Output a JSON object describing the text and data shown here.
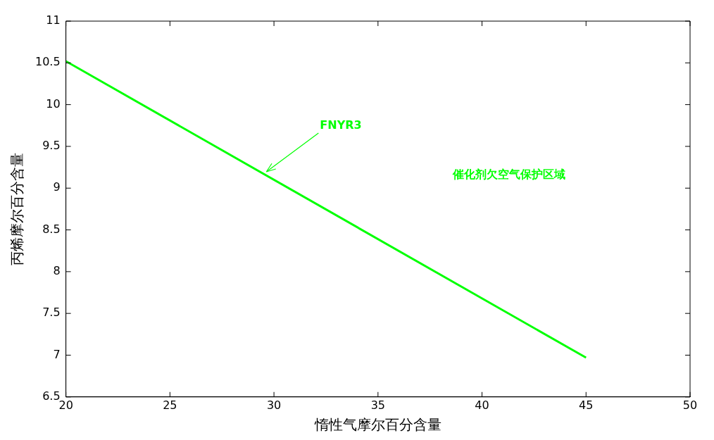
{
  "chart_data": {
    "type": "line",
    "xlabel": "惰性气摩尔百分含量",
    "ylabel": "丙烯摩尔百分含量",
    "x": [
      20,
      45
    ],
    "series": [
      {
        "name": "FNYR3",
        "color": "#00ff00",
        "values": [
          10.52,
          6.97
        ]
      }
    ],
    "xlim": [
      20,
      50
    ],
    "xticks": [
      20,
      25,
      30,
      35,
      40,
      45,
      50
    ],
    "ylim": [
      6.5,
      11
    ],
    "yticks": [
      6.5,
      7,
      7.5,
      8,
      8.5,
      9,
      9.5,
      10,
      10.5,
      11
    ],
    "grid": false,
    "legend": false,
    "marker": "none",
    "line_style": "solid",
    "annotations": [
      "催化剂欠空气保护区域"
    ]
  }
}
